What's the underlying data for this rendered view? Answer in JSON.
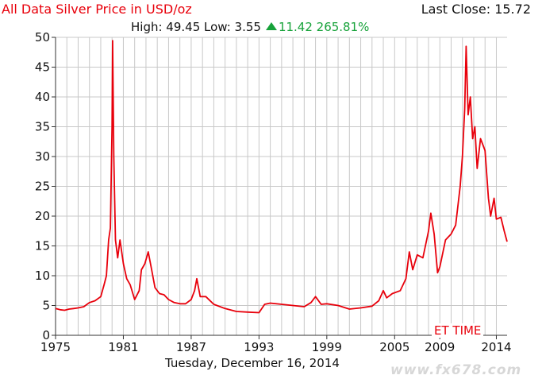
{
  "header": {
    "title": "All Data Silver Price in USD/oz",
    "last_close": "Last Close: 15.72",
    "high_low": "High: 49.45 Low: 3.55",
    "change": "11.42 265.81%"
  },
  "footer": {
    "date": "Tuesday, December 16, 2014",
    "et_time": "ET TIME",
    "watermark": "www.fx678.com"
  },
  "colors": {
    "line": "#e8000b",
    "grid": "#c8c8c8",
    "up": "#17a23a"
  },
  "chart_data": {
    "type": "line",
    "title": "All Data Silver Price in USD/oz",
    "xlabel": "",
    "ylabel": "",
    "xlim": [
      1975,
      2014.95
    ],
    "ylim": [
      0,
      50
    ],
    "x_ticks": [
      1975,
      1981,
      1987,
      1993,
      1999,
      2005,
      2009,
      2014
    ],
    "y_ticks": [
      0,
      5,
      10,
      15,
      20,
      25,
      30,
      35,
      40,
      45,
      50
    ],
    "grid": true,
    "series": [
      {
        "name": "",
        "x": [
          1975.0,
          1975.4,
          1975.8,
          1976.2,
          1976.6,
          1977.0,
          1977.5,
          1978.0,
          1978.5,
          1979.0,
          1979.3,
          1979.5,
          1979.7,
          1979.85,
          1980.0,
          1980.05,
          1980.15,
          1980.3,
          1980.5,
          1980.7,
          1981.0,
          1981.3,
          1981.6,
          1982.0,
          1982.4,
          1982.6,
          1982.9,
          1983.2,
          1983.5,
          1983.8,
          1984.2,
          1984.6,
          1985.0,
          1985.5,
          1986.0,
          1986.5,
          1987.0,
          1987.3,
          1987.5,
          1987.8,
          1988.3,
          1989.0,
          1990.0,
          1991.0,
          1992.0,
          1993.0,
          1993.5,
          1994.0,
          1995.0,
          1996.0,
          1997.0,
          1997.6,
          1998.0,
          1998.5,
          1999.0,
          2000.0,
          2001.0,
          2002.0,
          2003.0,
          2003.6,
          2004.0,
          2004.3,
          2004.8,
          2005.5,
          2006.0,
          2006.3,
          2006.6,
          2007.0,
          2007.5,
          2008.0,
          2008.2,
          2008.5,
          2008.8,
          2009.0,
          2009.5,
          2010.0,
          2010.4,
          2010.8,
          2011.0,
          2011.2,
          2011.33,
          2011.5,
          2011.7,
          2011.9,
          2012.1,
          2012.3,
          2012.6,
          2012.8,
          2013.0,
          2013.3,
          2013.5,
          2013.8,
          2014.0,
          2014.4,
          2014.7,
          2014.95
        ],
        "y": [
          4.5,
          4.3,
          4.2,
          4.4,
          4.5,
          4.6,
          4.8,
          5.5,
          5.8,
          6.5,
          8.5,
          10,
          16,
          18,
          35,
          49.45,
          30,
          16,
          13,
          16,
          12,
          9.5,
          8.5,
          6,
          7.5,
          11,
          12,
          14,
          11,
          8,
          7,
          6.8,
          6,
          5.5,
          5.3,
          5.3,
          6,
          7.5,
          9.5,
          6.5,
          6.5,
          5.2,
          4.5,
          4.0,
          3.9,
          3.8,
          5.2,
          5.4,
          5.2,
          5.0,
          4.8,
          5.5,
          6.5,
          5.2,
          5.3,
          5.0,
          4.4,
          4.6,
          4.9,
          5.8,
          7.5,
          6.3,
          7.0,
          7.5,
          9.5,
          14,
          11,
          13.5,
          13,
          17.5,
          20.5,
          17,
          10.5,
          11.5,
          16,
          17,
          18.5,
          25,
          30,
          38,
          48.5,
          37,
          40,
          33,
          35,
          28,
          33,
          32,
          31,
          23,
          20,
          23,
          19.5,
          19.8,
          17.5,
          15.72
        ]
      }
    ],
    "annotations": [
      "High: 49.45 Low: 3.55",
      "11.42 265.81%",
      "Last Close: 15.72"
    ]
  }
}
